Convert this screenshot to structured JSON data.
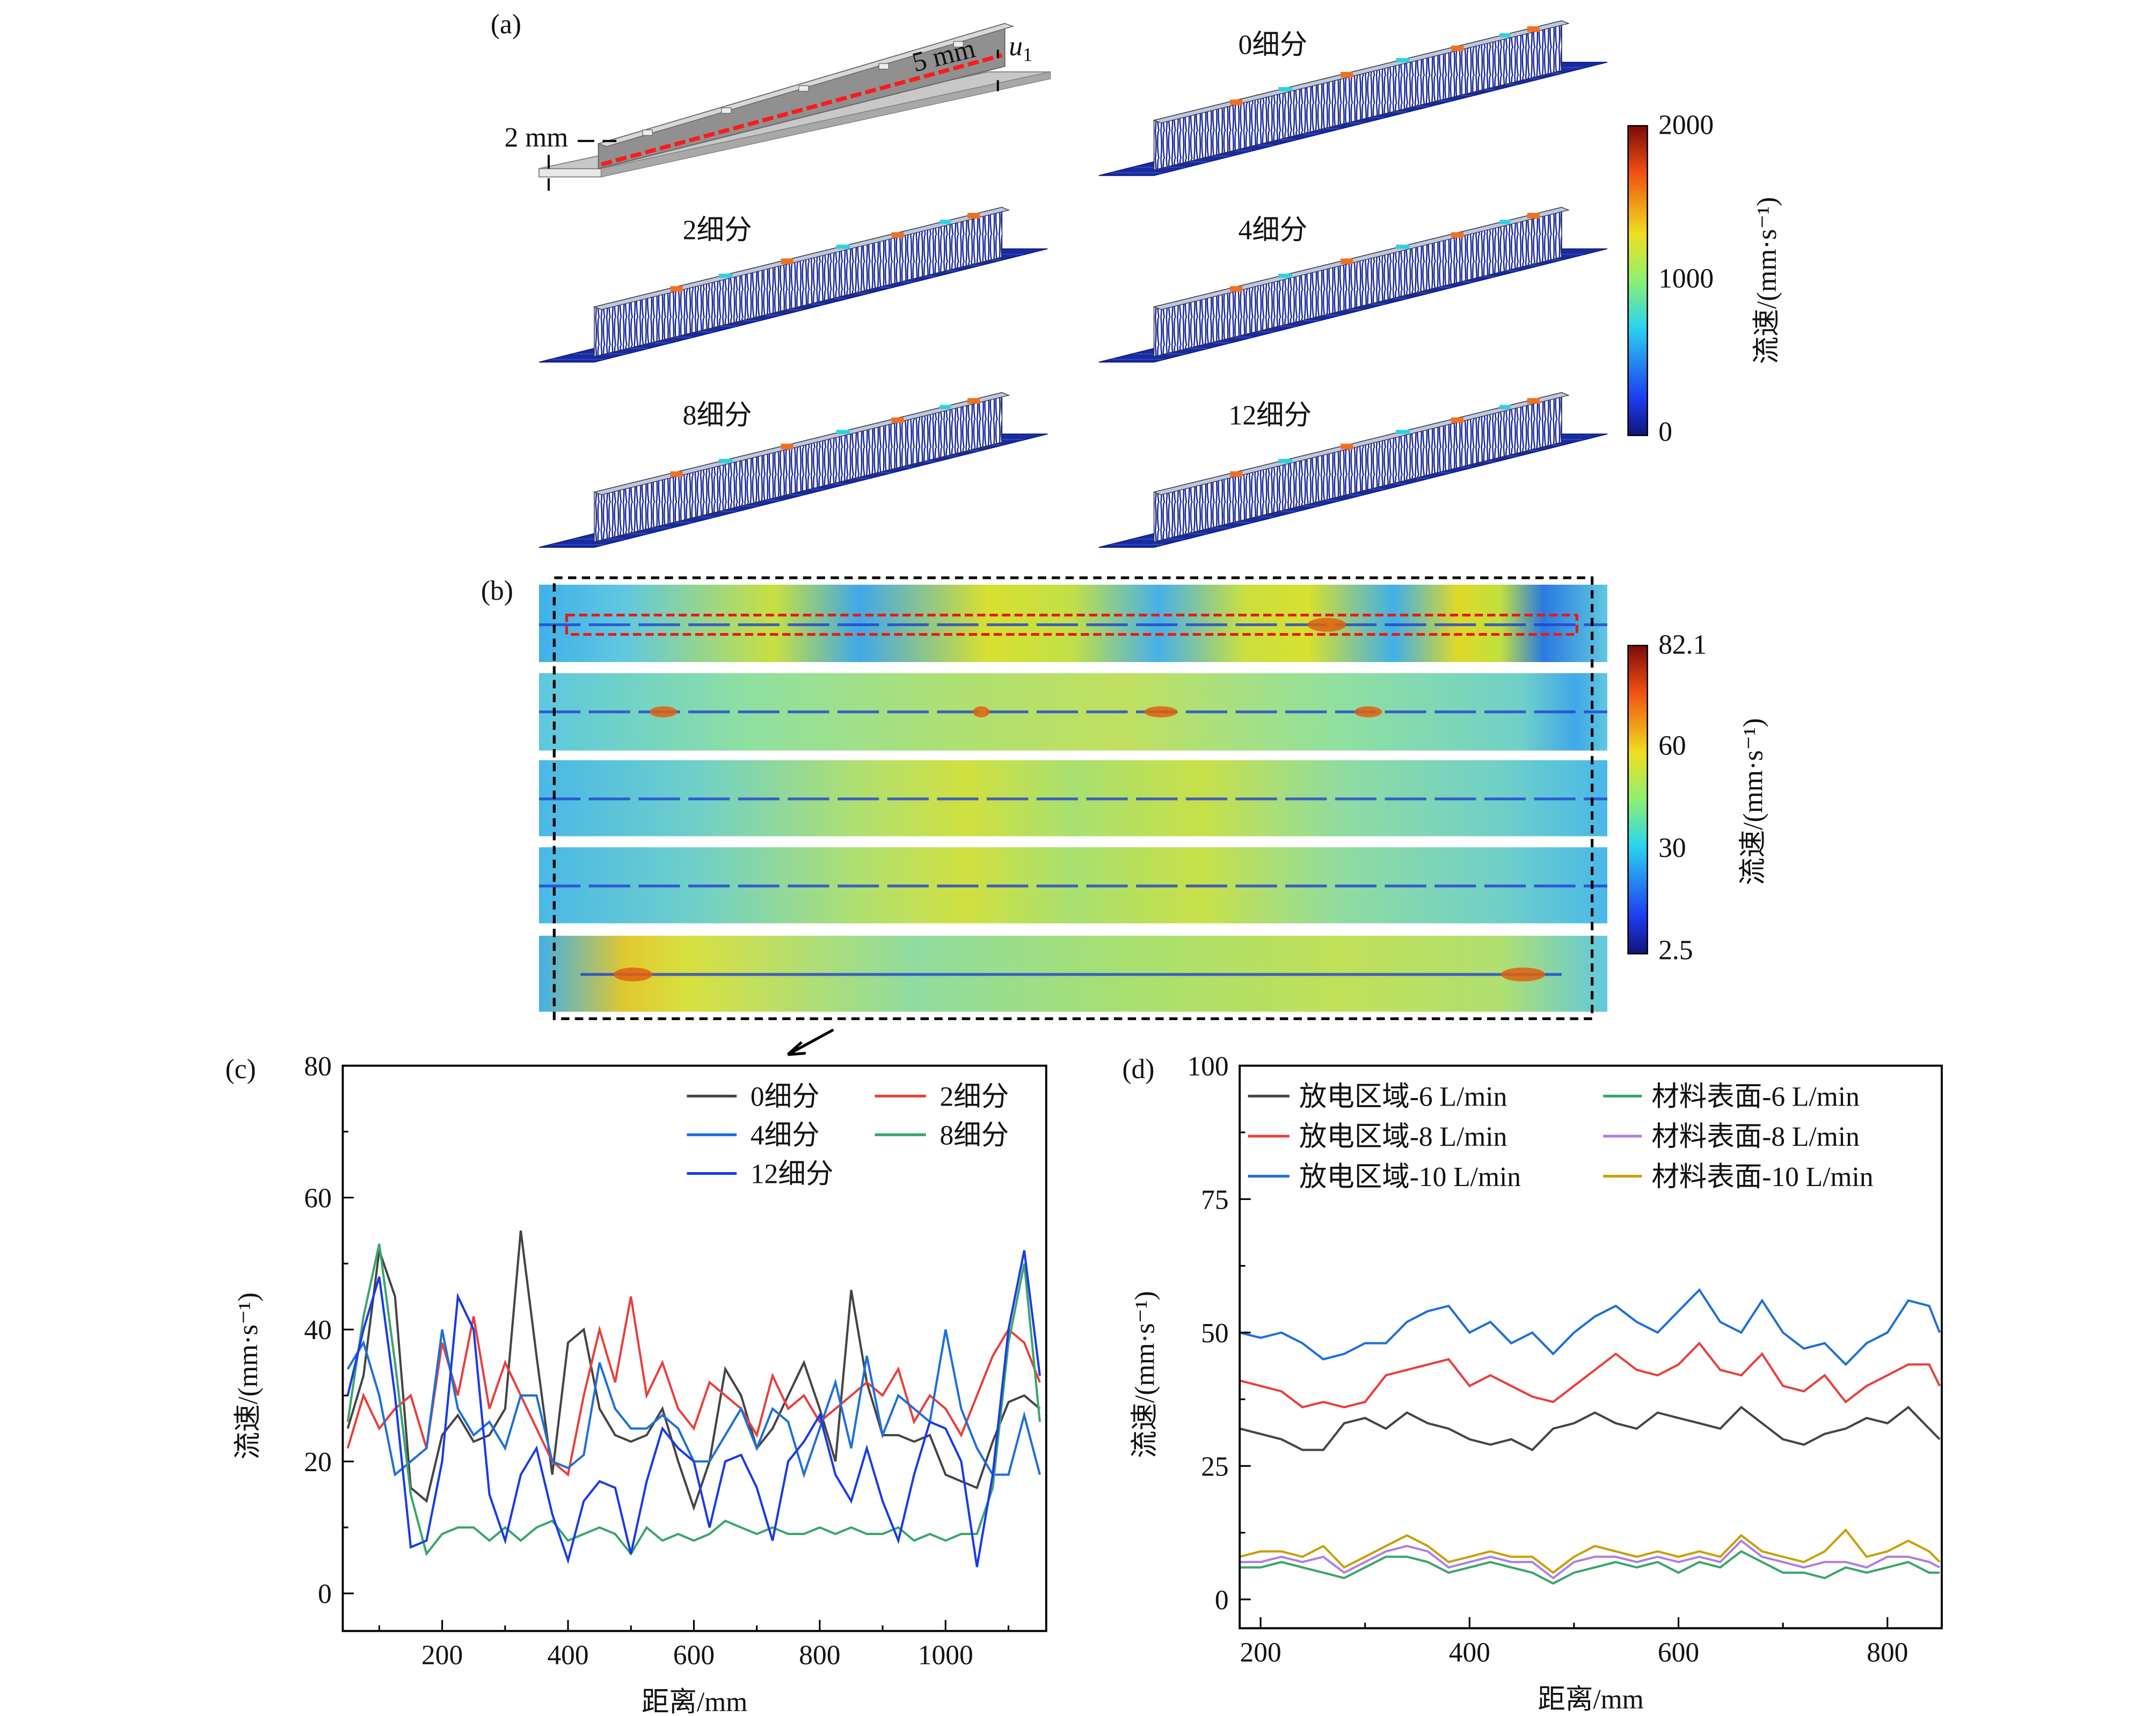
{
  "panel_a": {
    "label": "(a)",
    "dim_2mm": "2 mm",
    "dim_5mm": "5 mm",
    "u_label": "u",
    "u_sub": "1",
    "subfigures": [
      "0细分",
      "2细分",
      "4细分",
      "8细分",
      "12细分"
    ],
    "colorbar": {
      "ticks": [
        "2000",
        "1000",
        "0"
      ],
      "label": "流速/(mm·s⁻¹)",
      "colormap": "jet"
    }
  },
  "panel_b": {
    "label": "(b)",
    "colorbar": {
      "ticks": [
        "82.1",
        "60",
        "30",
        "2.5"
      ],
      "label": "流速/(mm·s⁻¹)",
      "colormap": "jet"
    }
  },
  "chart_data": [
    {
      "panel": "(c)",
      "type": "line",
      "xlabel": "距离/mm",
      "ylabel": "流速/(mm·s⁻¹)",
      "xlim": [
        42,
        1160
      ],
      "ylim": [
        -5.7,
        80
      ],
      "xticks": [
        200,
        400,
        600,
        800,
        1000
      ],
      "yticks": [
        0,
        20,
        40,
        60,
        80
      ],
      "grid": false,
      "legend": "top-right",
      "x": [
        50,
        75,
        100,
        125,
        150,
        175,
        200,
        225,
        250,
        275,
        300,
        325,
        350,
        375,
        400,
        425,
        450,
        475,
        500,
        525,
        550,
        575,
        600,
        625,
        650,
        675,
        700,
        725,
        750,
        775,
        800,
        825,
        850,
        875,
        900,
        925,
        950,
        975,
        1000,
        1025,
        1050,
        1075,
        1100,
        1125,
        1150
      ],
      "series": [
        {
          "name": "0细分",
          "color": "#454545",
          "values": [
            25,
            33,
            52,
            45,
            16,
            14,
            24,
            27,
            23,
            24,
            28,
            55,
            36,
            18,
            38,
            40,
            28,
            24,
            23,
            24,
            28,
            20,
            13,
            20,
            34,
            30,
            22,
            25,
            30,
            35,
            28,
            20,
            46,
            32,
            24,
            24,
            23,
            24,
            18,
            17,
            16,
            23,
            29,
            30,
            28
          ]
        },
        {
          "name": "2细分",
          "color": "#e8403c",
          "values": [
            22,
            30,
            25,
            28,
            30,
            22,
            38,
            30,
            42,
            28,
            35,
            30,
            25,
            20,
            18,
            30,
            40,
            32,
            45,
            30,
            35,
            28,
            25,
            32,
            30,
            28,
            24,
            33,
            28,
            30,
            26,
            28,
            30,
            32,
            30,
            34,
            26,
            30,
            28,
            24,
            30,
            36,
            40,
            38,
            32
          ]
        },
        {
          "name": "4细分",
          "color": "#1f6fd8",
          "values": [
            34,
            38,
            30,
            18,
            20,
            22,
            40,
            28,
            24,
            26,
            22,
            30,
            30,
            20,
            19,
            21,
            35,
            28,
            25,
            25,
            27,
            25,
            20,
            20,
            24,
            28,
            22,
            28,
            26,
            18,
            25,
            32,
            22,
            36,
            24,
            30,
            28,
            26,
            40,
            28,
            22,
            18,
            18,
            27,
            18
          ]
        },
        {
          "name": "8细分",
          "color": "#3aa66a",
          "values": [
            26,
            42,
            53,
            35,
            15,
            6,
            9,
            10,
            10,
            8,
            10,
            8,
            10,
            11,
            8,
            9,
            10,
            9,
            6,
            10,
            8,
            9,
            8,
            9,
            11,
            10,
            9,
            10,
            9,
            9,
            10,
            9,
            10,
            9,
            9,
            10,
            8,
            9,
            8,
            9,
            9,
            16,
            38,
            50,
            26
          ]
        },
        {
          "name": "12细分",
          "color": "#1a3be8",
          "values": [
            30,
            40,
            48,
            30,
            7,
            8,
            20,
            45,
            40,
            15,
            8,
            18,
            22,
            12,
            5,
            14,
            17,
            16,
            6,
            17,
            25,
            22,
            20,
            10,
            20,
            21,
            16,
            8,
            20,
            23,
            27,
            18,
            14,
            22,
            14,
            8,
            18,
            26,
            25,
            20,
            4,
            18,
            40,
            52,
            33
          ]
        }
      ]
    },
    {
      "panel": "(d)",
      "type": "line",
      "xlabel": "距离/mm",
      "ylabel": "流速/(mm·s⁻¹)",
      "xlim": [
        180,
        852
      ],
      "ylim": [
        -5.4,
        100
      ],
      "xticks": [
        200,
        400,
        600,
        800
      ],
      "yticks": [
        0,
        25,
        50,
        75,
        100
      ],
      "grid": false,
      "legend": "top",
      "x": [
        180,
        200,
        220,
        240,
        260,
        280,
        300,
        320,
        340,
        360,
        380,
        400,
        420,
        440,
        460,
        480,
        500,
        520,
        540,
        560,
        580,
        600,
        620,
        640,
        660,
        680,
        700,
        720,
        740,
        760,
        780,
        800,
        820,
        840,
        850
      ],
      "series": [
        {
          "name": "放电区域-6 L/min",
          "color": "#454545",
          "values": [
            32,
            31,
            30,
            28,
            28,
            33,
            34,
            32,
            35,
            33,
            32,
            30,
            29,
            30,
            28,
            32,
            33,
            35,
            33,
            32,
            35,
            34,
            33,
            32,
            36,
            33,
            30,
            29,
            31,
            32,
            34,
            33,
            36,
            32,
            30
          ]
        },
        {
          "name": "放电区域-8 L/min",
          "color": "#e8403c",
          "values": [
            41,
            40,
            39,
            36,
            37,
            36,
            37,
            42,
            43,
            44,
            45,
            40,
            42,
            40,
            38,
            37,
            40,
            43,
            46,
            43,
            42,
            44,
            48,
            43,
            42,
            46,
            40,
            39,
            42,
            37,
            40,
            42,
            44,
            44,
            40
          ]
        },
        {
          "name": "放电区域-10 L/min",
          "color": "#1f6fd8",
          "values": [
            50,
            49,
            50,
            48,
            45,
            46,
            48,
            48,
            52,
            54,
            55,
            50,
            52,
            48,
            50,
            46,
            50,
            53,
            55,
            52,
            50,
            54,
            58,
            52,
            50,
            56,
            50,
            47,
            48,
            44,
            48,
            50,
            56,
            55,
            50
          ]
        },
        {
          "name": "材料表面-6 L/min",
          "color": "#3aa66a",
          "values": [
            6,
            6,
            7,
            6,
            5,
            4,
            6,
            8,
            8,
            7,
            5,
            6,
            7,
            6,
            5,
            3,
            5,
            6,
            7,
            6,
            7,
            5,
            7,
            6,
            9,
            7,
            5,
            5,
            4,
            6,
            5,
            6,
            7,
            5,
            5
          ]
        },
        {
          "name": "材料表面-8 L/min",
          "color": "#b07ee0",
          "values": [
            7,
            7,
            8,
            7,
            8,
            5,
            7,
            9,
            10,
            9,
            6,
            7,
            8,
            7,
            7,
            4,
            7,
            8,
            8,
            7,
            8,
            7,
            8,
            7,
            11,
            8,
            7,
            6,
            7,
            7,
            6,
            8,
            8,
            7,
            6
          ]
        },
        {
          "name": "材料表面-10 L/min",
          "color": "#c8a000",
          "values": [
            8,
            9,
            9,
            8,
            10,
            6,
            8,
            10,
            12,
            10,
            7,
            8,
            9,
            8,
            8,
            5,
            8,
            10,
            9,
            8,
            9,
            8,
            9,
            8,
            12,
            9,
            8,
            7,
            9,
            13,
            8,
            9,
            11,
            9,
            7
          ]
        }
      ]
    }
  ]
}
